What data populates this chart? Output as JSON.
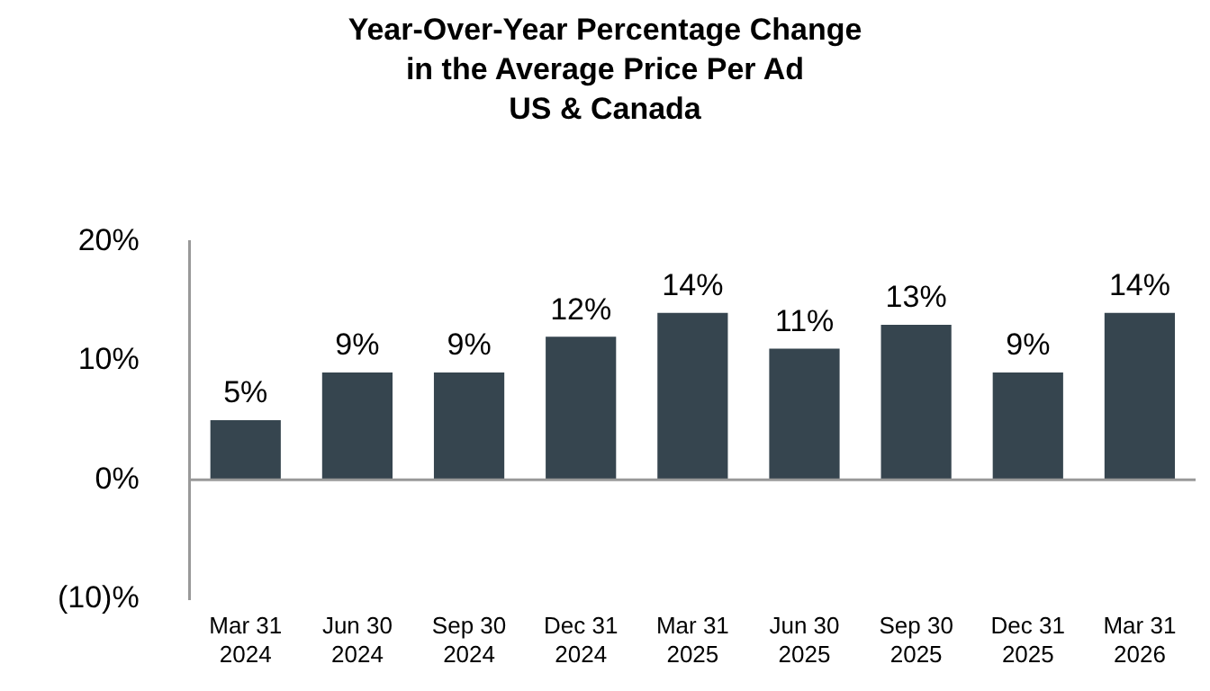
{
  "chart_data": {
    "type": "bar",
    "title": "Year-Over-Year Percentage Change in the Average Price Per Ad",
    "subtitle": "US & Canada",
    "categories": [
      "Mar 31 2024",
      "Jun 30 2024",
      "Sep 30 2024",
      "Dec 31 2024",
      "Mar 31 2025",
      "Jun 30 2025",
      "Sep 30 2025",
      "Dec 31 2025",
      "Mar 31 2026"
    ],
    "values": [
      5,
      9,
      9,
      12,
      14,
      11,
      13,
      9,
      14
    ],
    "value_labels": [
      "5%",
      "9%",
      "9%",
      "12%",
      "14%",
      "11%",
      "13%",
      "9%",
      "14%"
    ],
    "color": "#36454f",
    "ylim": [
      -10,
      20
    ],
    "yticks": [
      {
        "value": 20,
        "label": "20%"
      },
      {
        "value": 10,
        "label": "10%"
      },
      {
        "value": 0,
        "label": "0%"
      },
      {
        "value": -10,
        "label": "(10)%"
      }
    ],
    "ref_lines": [
      {
        "axis": "y",
        "value": 0,
        "color": "#999999"
      }
    ],
    "grid": false,
    "legend": false
  }
}
